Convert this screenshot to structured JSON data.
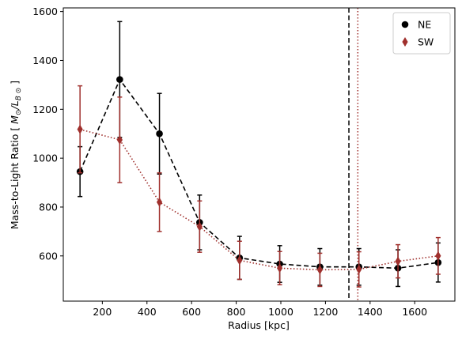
{
  "chart_data": {
    "type": "scatter",
    "xlabel": "Radius [kpc]",
    "ylabel_prefix": "Mass-to-Light Ratio [ ",
    "ylabel_math": "M",
    "ylabel_sub1": "⊙",
    "ylabel_slash": "/",
    "ylabel_math2": "L",
    "ylabel_sub2": "B ⊙",
    "ylabel_suffix": " ]",
    "xlim": [
      25,
      1780
    ],
    "ylim": [
      415,
      1615
    ],
    "xticks": [
      200,
      400,
      600,
      800,
      1000,
      1200,
      1400,
      1600
    ],
    "yticks": [
      600,
      800,
      1000,
      1200,
      1400,
      1600
    ],
    "grid": false,
    "legend_position": "upper right",
    "series": [
      {
        "name": "NE",
        "color": "#000000",
        "marker": "circle",
        "linestyle": "dashed",
        "x": [
          100,
          278,
          456,
          636,
          815,
          995,
          1175,
          1350,
          1525,
          1705
        ],
        "y": [
          945,
          1322,
          1100,
          737,
          592,
          567,
          555,
          555,
          550,
          573
        ],
        "yerr": [
          102,
          237,
          165,
          112,
          88,
          75,
          75,
          75,
          75,
          80
        ]
      },
      {
        "name": "SW",
        "color": "#a0302d",
        "marker": "thin_diamond",
        "linestyle": "dotted",
        "x": [
          100,
          278,
          456,
          636,
          815,
          995,
          1175,
          1350,
          1525,
          1705
        ],
        "y": [
          1118,
          1075,
          820,
          720,
          582,
          550,
          543,
          545,
          578,
          600
        ],
        "yerr": [
          178,
          175,
          120,
          105,
          78,
          68,
          68,
          72,
          68,
          75
        ]
      }
    ],
    "vlines": [
      {
        "x": 1305,
        "color": "#000000",
        "linestyle": "dashed"
      },
      {
        "x": 1345,
        "color": "#a0302d",
        "linestyle": "dotted"
      }
    ]
  }
}
